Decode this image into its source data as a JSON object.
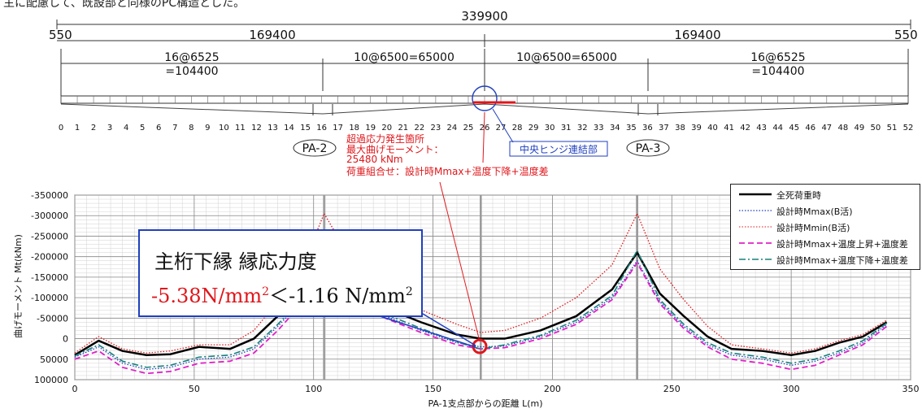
{
  "header_text": "主に配慮して、既設部と同様のPC構造とした。",
  "dims": {
    "total": "339900",
    "left_end": "550",
    "right_end": "550",
    "left_half": "169400",
    "right_half": "169400",
    "seg1": "16@6525",
    "seg1b": "=104400",
    "seg2": "10@6500=65000",
    "seg3": "10@6500=65000",
    "seg4": "16@6525",
    "seg4b": "=104400"
  },
  "node_numbers": [
    "0",
    "1",
    "2",
    "3",
    "4",
    "5",
    "6",
    "7",
    "8",
    "9",
    "10",
    "11",
    "12",
    "13",
    "14",
    "15",
    "16",
    "17",
    "18",
    "19",
    "20",
    "21",
    "22",
    "23",
    "24",
    "25",
    "26",
    "27",
    "28",
    "29",
    "30",
    "31",
    "32",
    "33",
    "34",
    "35",
    "36",
    "37",
    "38",
    "39",
    "40",
    "41",
    "42",
    "43",
    "44",
    "45",
    "46",
    "47",
    "48",
    "49",
    "50",
    "51",
    "52"
  ],
  "piers": {
    "pa2": "PA-2",
    "pa3": "PA-3"
  },
  "annotations": {
    "overstress_1": "超過応力発生箇所",
    "overstress_2": "最大曲げモーメント：",
    "overstress_3": "25480 kNm",
    "load_combo": "荷重組合せ：設計時Mmax+温度下降+温度差",
    "hinge": "中央ヒンジ連結部"
  },
  "callout": {
    "title": "主桁下縁 縁応力度",
    "value_red": "-5.38N/mm",
    "sup1": "2",
    "compare": "＜-1.16 N/mm",
    "sup2": "2"
  },
  "legend": [
    {
      "label": "全死荷重時",
      "color": "#000000",
      "style": "solid"
    },
    {
      "label": "設計時Mmax(B活)",
      "color": "#1f3fbf",
      "style": "dotted"
    },
    {
      "label": "設計時Mmin(B活)",
      "color": "#e0161b",
      "style": "dotted"
    },
    {
      "label": "設計時Mmax+温度上昇+温度差",
      "color": "#e020c8",
      "style": "dashed"
    },
    {
      "label": "設計時Mmax+温度下降+温度差",
      "color": "#16807a",
      "style": "dashdot"
    }
  ],
  "chart_data": {
    "type": "line",
    "xlabel": "PA-1支点部からの距離 L(m)",
    "ylabel": "曲げモーメント Mt(kNm)",
    "xlim": [
      0,
      350
    ],
    "ylim": [
      -350000,
      100000
    ],
    "xticks": [
      "0",
      "50",
      "100",
      "150",
      "200",
      "250",
      "300",
      "350"
    ],
    "yticks": [
      "-350000",
      "-300000",
      "-250000",
      "-200000",
      "-150000",
      "-100000",
      "-50000",
      "0",
      "50000",
      "100000"
    ],
    "series": [
      {
        "name": "全死荷重時",
        "x": [
          0,
          10,
          20,
          30,
          40,
          52,
          65,
          75,
          85,
          95,
          104.4,
          115,
          130,
          145,
          160,
          170,
          180,
          195,
          210,
          225,
          235.5,
          245,
          255,
          265,
          275,
          288,
          300,
          310,
          320,
          330,
          340
        ],
        "y": [
          40000,
          5000,
          30000,
          40000,
          38000,
          20000,
          25000,
          0,
          -55000,
          -105000,
          -210000,
          -140000,
          -75000,
          -40000,
          -10000,
          0,
          0,
          -20000,
          -55000,
          -120000,
          -210000,
          -110000,
          -55000,
          -5000,
          25000,
          30000,
          40000,
          30000,
          10000,
          -5000,
          -40000
        ]
      },
      {
        "name": "設計時Mmax(B活)",
        "x": [
          0,
          10,
          20,
          30,
          40,
          52,
          65,
          75,
          85,
          95,
          104.4,
          115,
          130,
          145,
          160,
          170,
          180,
          195,
          210,
          225,
          235.5,
          245,
          255,
          265,
          275,
          288,
          300,
          310,
          320,
          330,
          340
        ],
        "y": [
          45000,
          20000,
          60000,
          75000,
          70000,
          50000,
          45000,
          25000,
          -30000,
          -90000,
          -190000,
          -120000,
          -55000,
          -20000,
          10000,
          20000,
          18000,
          -5000,
          -40000,
          -100000,
          -190000,
          -90000,
          -30000,
          15000,
          40000,
          50000,
          65000,
          55000,
          35000,
          10000,
          -35000
        ]
      },
      {
        "name": "設計時Mmin(B活)",
        "x": [
          0,
          10,
          20,
          30,
          40,
          52,
          65,
          75,
          85,
          95,
          104.4,
          115,
          130,
          145,
          160,
          170,
          180,
          195,
          210,
          225,
          235.5,
          245,
          255,
          265,
          275,
          288,
          300,
          310,
          320,
          330,
          340
        ],
        "y": [
          35000,
          -5000,
          25000,
          35000,
          30000,
          15000,
          15000,
          -20000,
          -90000,
          -170000,
          -305000,
          -200000,
          -120000,
          -70000,
          -35000,
          -15000,
          -20000,
          -50000,
          -100000,
          -180000,
          -305000,
          -170000,
          -95000,
          -30000,
          15000,
          25000,
          35000,
          25000,
          5000,
          -10000,
          -45000
        ]
      },
      {
        "name": "設計時Mmax+温度上昇+温度差",
        "x": [
          0,
          10,
          20,
          30,
          40,
          52,
          65,
          75,
          85,
          95,
          104.4,
          115,
          130,
          145,
          160,
          170,
          180,
          195,
          210,
          225,
          235.5,
          245,
          255,
          265,
          275,
          288,
          300,
          310,
          320,
          330,
          340
        ],
        "y": [
          50000,
          30000,
          70000,
          85000,
          80000,
          60000,
          55000,
          35000,
          -20000,
          -85000,
          -185000,
          -115000,
          -50000,
          -15000,
          15000,
          25000,
          22000,
          0,
          -35000,
          -95000,
          -185000,
          -85000,
          -25000,
          20000,
          50000,
          60000,
          75000,
          65000,
          40000,
          15000,
          -30000
        ]
      },
      {
        "name": "設計時Mmax+温度下降+温度差",
        "x": [
          0,
          10,
          20,
          30,
          40,
          52,
          65,
          75,
          85,
          95,
          104.4,
          115,
          130,
          145,
          160,
          170,
          180,
          195,
          210,
          225,
          235.5,
          245,
          255,
          265,
          275,
          288,
          300,
          310,
          320,
          330,
          340
        ],
        "y": [
          42000,
          15000,
          55000,
          70000,
          65000,
          45000,
          40000,
          20000,
          -35000,
          -95000,
          -215000,
          -125000,
          -60000,
          -25000,
          8000,
          25480,
          15000,
          -8000,
          -45000,
          -105000,
          -215000,
          -95000,
          -35000,
          10000,
          35000,
          45000,
          60000,
          50000,
          30000,
          5000,
          -38000
        ]
      }
    ]
  }
}
